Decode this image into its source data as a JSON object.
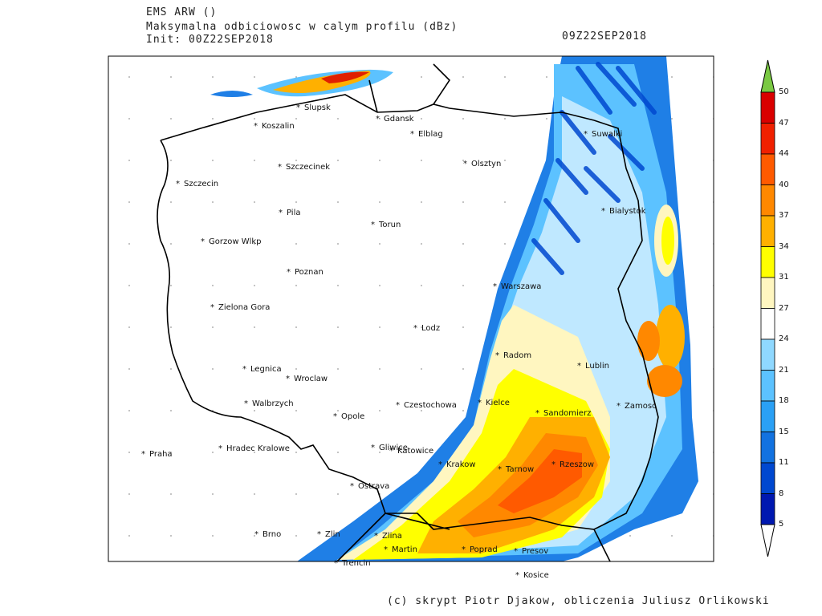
{
  "header": {
    "model": "EMS ARW ()",
    "title": "Maksymalna odbiciowosc w calym profilu (dBz)",
    "init": "Init: 00Z22SEP2018",
    "valid": "09Z22SEP2018"
  },
  "cities": [
    {
      "name": "Slupsk"
    },
    {
      "name": "Gdansk"
    },
    {
      "name": "Koszalin"
    },
    {
      "name": "Elblag"
    },
    {
      "name": "Szczecinek"
    },
    {
      "name": "Olsztyn"
    },
    {
      "name": "Suwalki"
    },
    {
      "name": "Szczecin"
    },
    {
      "name": "Bialystok"
    },
    {
      "name": "Pila"
    },
    {
      "name": "Torun"
    },
    {
      "name": "Gorzow Wlkp"
    },
    {
      "name": "Poznan"
    },
    {
      "name": "Warszawa"
    },
    {
      "name": "Zielona Gora"
    },
    {
      "name": "Lodz"
    },
    {
      "name": "Radom"
    },
    {
      "name": "Legnica"
    },
    {
      "name": "Lublin"
    },
    {
      "name": "Wroclaw"
    },
    {
      "name": "Walbrzych"
    },
    {
      "name": "Czestochowa"
    },
    {
      "name": "Kielce"
    },
    {
      "name": "Zamosc"
    },
    {
      "name": "Opole"
    },
    {
      "name": "Sandomierz"
    },
    {
      "name": "Praha"
    },
    {
      "name": "Hradec Kralowe"
    },
    {
      "name": "Gliwice"
    },
    {
      "name": "Katowice"
    },
    {
      "name": "Krakow"
    },
    {
      "name": "Tarnow"
    },
    {
      "name": "Rzeszow"
    },
    {
      "name": "Ostrava"
    },
    {
      "name": "Brno"
    },
    {
      "name": "Zlin"
    },
    {
      "name": "Zlina"
    },
    {
      "name": "Martin"
    },
    {
      "name": "Poprad"
    },
    {
      "name": "Presov"
    },
    {
      "name": "Trencin"
    },
    {
      "name": "Kosice"
    }
  ],
  "colorbar": {
    "levels": [
      "50",
      "47",
      "44",
      "40",
      "37",
      "34",
      "31",
      "27",
      "24",
      "21",
      "18",
      "15",
      "11",
      "8",
      "5"
    ],
    "colors": [
      "#d90000",
      "#f02000",
      "#ff5a00",
      "#ff8800",
      "#ffb000",
      "#ffff00",
      "#fff6c0",
      "#ffffff",
      "#8fd8ff",
      "#5cc2ff",
      "#2aa0f5",
      "#1272e0",
      "#0048d0",
      "#0018b0"
    ],
    "over_color": "#7ac943"
  },
  "credit": "(c) skrypt Piotr Djakow, obliczenia Juliusz Orlikowski"
}
